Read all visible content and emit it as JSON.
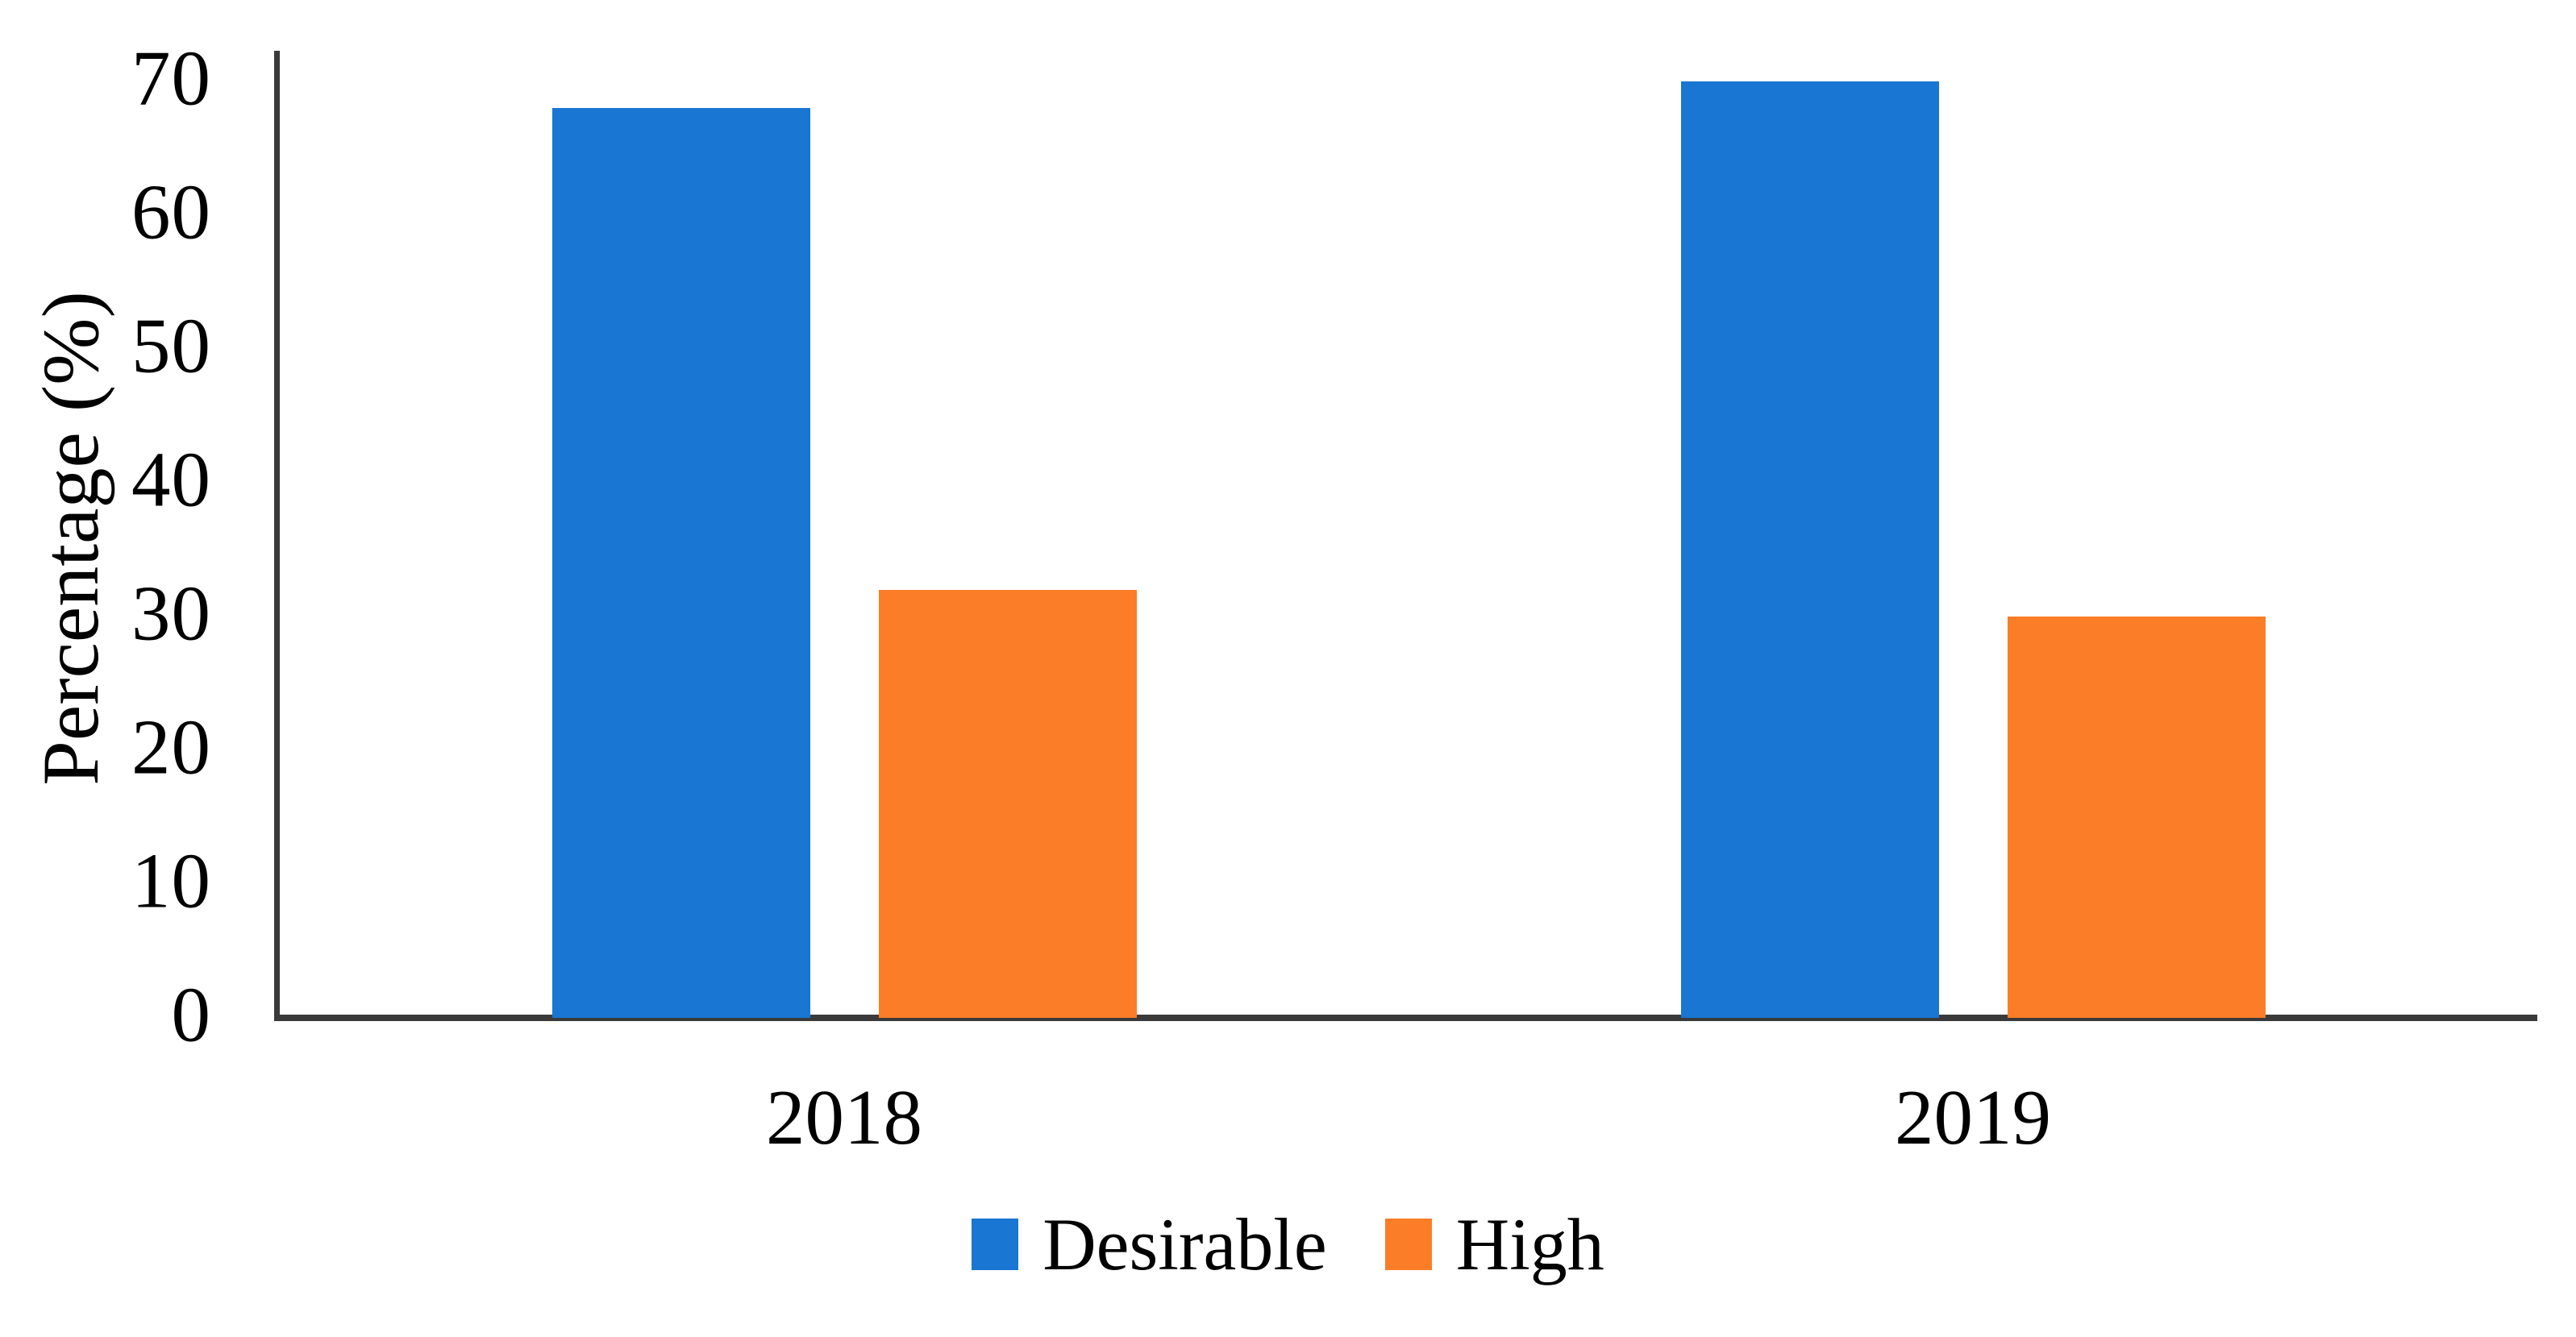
{
  "chart_data": {
    "type": "bar",
    "title": "",
    "xlabel": "",
    "ylabel": "Percentage (%)",
    "categories": [
      "2018",
      "2019"
    ],
    "series": [
      {
        "name": "Desirable",
        "color": "#1976d2",
        "values": [
          68,
          70
        ]
      },
      {
        "name": "High",
        "color": "#fb7d27",
        "values": [
          32,
          30
        ]
      }
    ],
    "ylim": [
      0,
      70
    ],
    "yticks": [
      0,
      10,
      20,
      30,
      40,
      50,
      60,
      70
    ],
    "grid": false,
    "legend_position": "bottom",
    "axis_color": "#3a3a3a",
    "text_color": "#000000"
  }
}
